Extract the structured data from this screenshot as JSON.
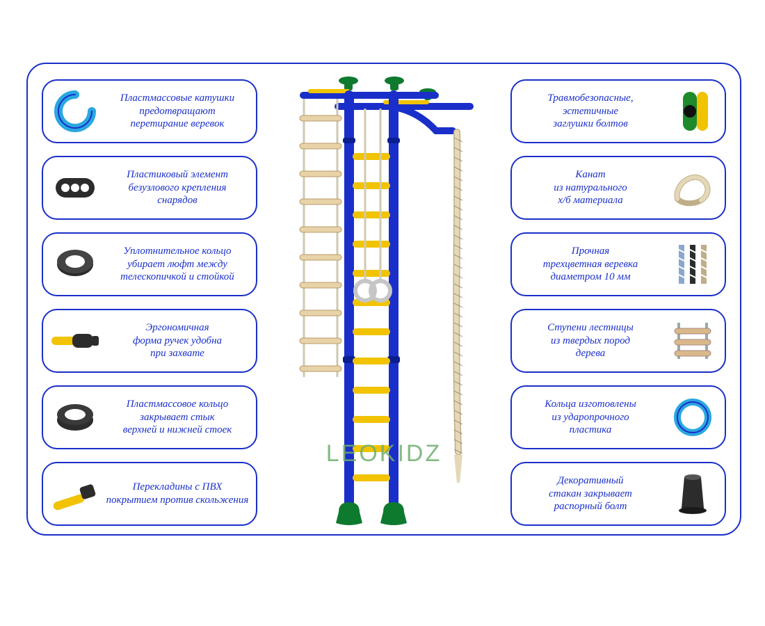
{
  "frame": {
    "border_color": "#1a2fc9",
    "border_radius": 28
  },
  "watermark": {
    "text": "LEOKIDZ",
    "color": "#6fae6f",
    "fontsize": 34
  },
  "palette": {
    "blue": "#1a2fc9",
    "yellow": "#f1c300",
    "green": "#1f8a2b",
    "cyan": "#2aa7e0",
    "dark": "#2c2c2c",
    "wood": "#d9b88a",
    "rope_beige": "#e4d8b8",
    "rope_brown": "#7a6a4f",
    "text_color": "#1a2fc9"
  },
  "left_features": [
    {
      "id": "spool",
      "text": "Пластмассовые катушки\nпредотвращают\nперетирание веревок",
      "icon": "spool-icon"
    },
    {
      "id": "knotless",
      "text": "Пластиковый элемент\nбезузлового крепления\nснарядов",
      "icon": "knotless-icon"
    },
    {
      "id": "seal-ring",
      "text": "Уплотнительное кольцо\nубирает люфт между\nтелескопичкой и стойкой",
      "icon": "seal-ring-icon"
    },
    {
      "id": "grip",
      "text": "Эргономичная\nформа ручек удобна\nпри захвате",
      "icon": "grip-icon"
    },
    {
      "id": "joint-ring",
      "text": "Пластмассовое кольцо\nзакрывает стык\nверхней и нижней стоек",
      "icon": "joint-ring-icon"
    },
    {
      "id": "crossbar",
      "text": "Перекладины с ПВХ\nпокрытием против скольжения",
      "icon": "crossbar-icon"
    }
  ],
  "right_features": [
    {
      "id": "bolt-cap",
      "text": "Травмобезопасные,\nэстетичные\nзаглушки болтов",
      "icon": "bolt-cap-icon"
    },
    {
      "id": "rope",
      "text": "Канат\nиз натурального\nх/б материала",
      "icon": "rope-icon"
    },
    {
      "id": "tricolor-rope",
      "text": "Прочная\nтрехцветная веревка\nдиаметром 10 мм",
      "icon": "tricolor-rope-icon"
    },
    {
      "id": "rungs",
      "text": "Ступени лестницы\nиз твердых пород\nдерева",
      "icon": "rungs-icon"
    },
    {
      "id": "rings",
      "text": "Кольца изготовлены\nиз ударопрочного\nпластика",
      "icon": "rings-icon"
    },
    {
      "id": "cup",
      "text": "Декоративный\nстакан закрывает\nраспорный болт",
      "icon": "cup-icon"
    }
  ],
  "central_image": {
    "type": "product-illustration",
    "label": "children-indoor-gym-complex",
    "pole_color": "#1a2fc9",
    "rung_color": "#f1c300",
    "ladder_rung_color": "#e8d3a8",
    "accent_color": "#0e7a2e",
    "rope_color": "#e4d8b8",
    "ring_color": "#c6c6c6",
    "rungs_count": 12,
    "ladder_rungs_count": 10
  }
}
